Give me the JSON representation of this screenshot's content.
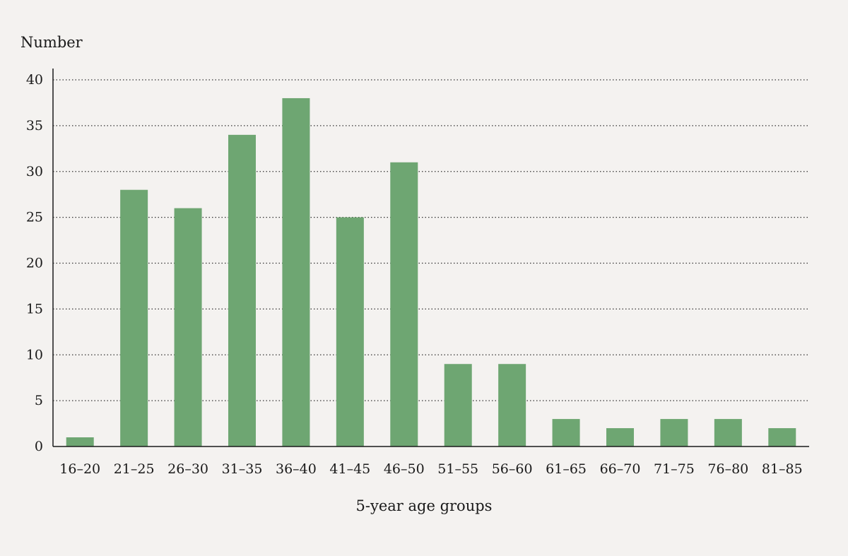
{
  "chart_data": {
    "type": "bar",
    "ylabel": "Number",
    "xlabel": "5-year age groups",
    "categories": [
      "16–20",
      "21–25",
      "26–30",
      "31–35",
      "36–40",
      "41–45",
      "46–50",
      "51–55",
      "56–60",
      "61–65",
      "66–70",
      "71–75",
      "76–80",
      "81–85"
    ],
    "values": [
      1,
      28,
      26,
      34,
      38,
      25,
      31,
      9,
      9,
      3,
      2,
      3,
      3,
      2
    ],
    "ylim": [
      0,
      40
    ],
    "yticks": [
      "0",
      "5",
      "10",
      "15",
      "20",
      "25",
      "30",
      "35",
      "40"
    ],
    "grid": true,
    "grid_style": "dotted horizontal",
    "bar_color": "#6ea672",
    "background_color": "#f4f2f0"
  }
}
